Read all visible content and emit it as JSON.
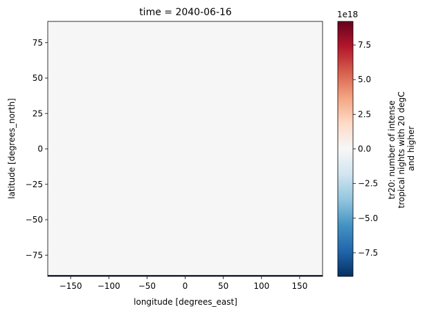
{
  "chart_data": {
    "type": "heatmap",
    "title": "time = 2040-06-16",
    "xlabel": "longitude [degrees_east]",
    "ylabel": "latitude [degrees_north]",
    "xlim": [
      -180,
      180
    ],
    "ylim": [
      -90,
      90
    ],
    "x_ticks": [
      -150,
      -100,
      -50,
      0,
      50,
      100,
      150
    ],
    "y_ticks": [
      -75,
      -50,
      -25,
      0,
      25,
      50,
      75
    ],
    "field_value": 0,
    "field_color": "#f7f6f6",
    "bottom_row_color": "#0b2a52",
    "colorbar": {
      "label_lines": [
        "tr20: number of intense",
        "tropical nights with 20 degC",
        "and higher"
      ],
      "offset_text": "1e18",
      "range": [
        -9.2,
        9.2
      ],
      "ticks": [
        -7.5,
        -5.0,
        -2.5,
        0.0,
        2.5,
        5.0,
        7.5
      ],
      "tick_labels": [
        "−7.5",
        "−5.0",
        "−2.5",
        "0.0",
        "2.5",
        "5.0",
        "7.5"
      ],
      "colormap": "RdBu_r",
      "colors": [
        "#053061",
        "#2166ac",
        "#4393c3",
        "#92c5de",
        "#d1e5f0",
        "#f7f7f7",
        "#fddbc7",
        "#f4a582",
        "#d6604d",
        "#b2182b",
        "#67001f"
      ]
    }
  }
}
